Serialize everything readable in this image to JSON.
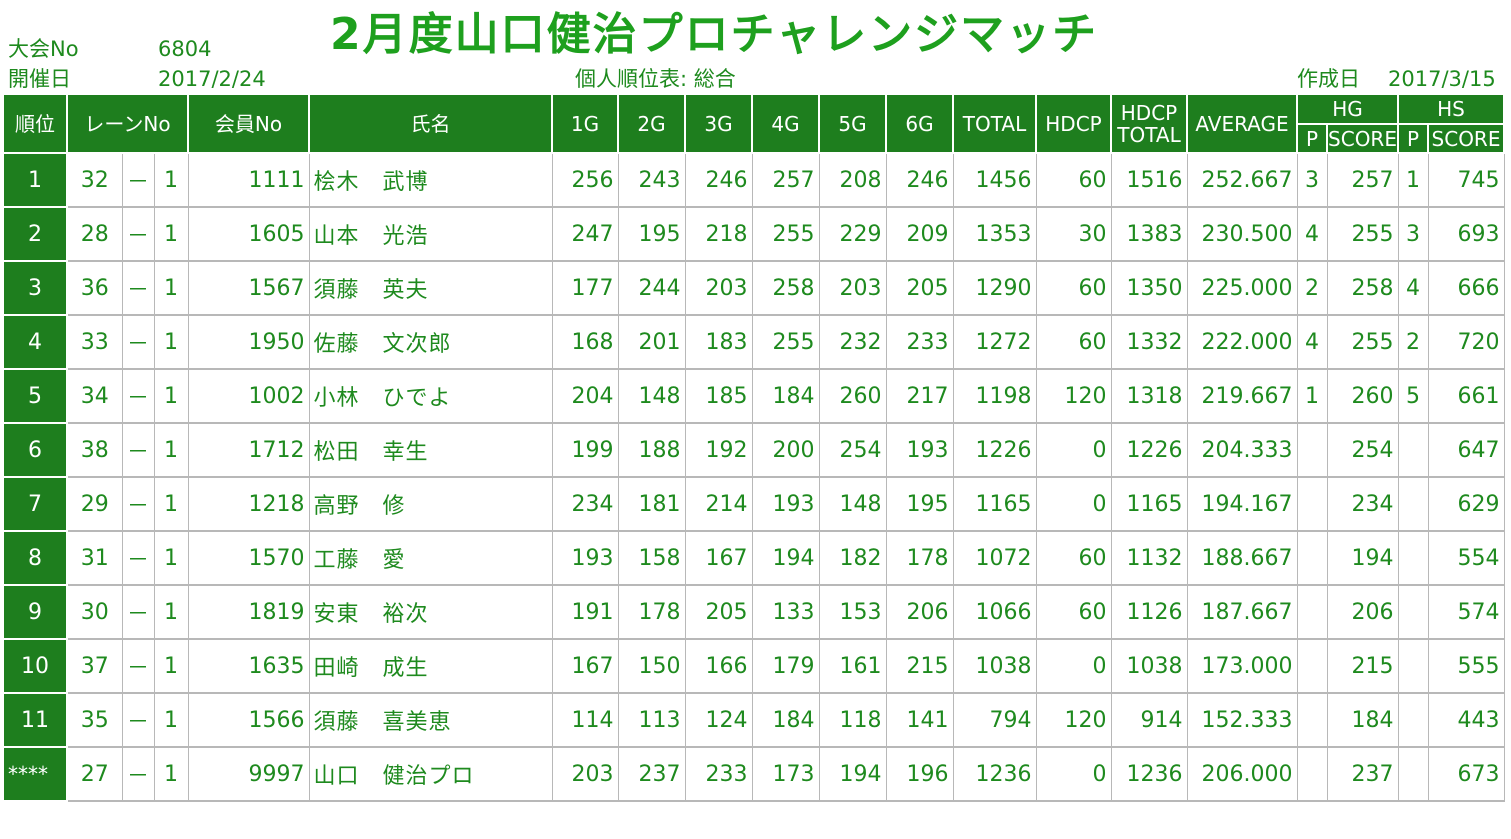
{
  "title": "2月度山口健治プロチャレンジマッチ",
  "meta": {
    "taikai_label": "大会No",
    "taikai_value": "6804",
    "kaisai_label": "開催日",
    "kaisai_value": "2017/2/24",
    "subtitle": "個人順位表: 総合",
    "sakusei_label": "作成日",
    "sakusei_value": "2017/3/15"
  },
  "headers": {
    "rank": "順位",
    "lane": "レーンNo",
    "member": "会員No",
    "name": "氏名",
    "g1": "1G",
    "g2": "2G",
    "g3": "3G",
    "g4": "4G",
    "g5": "5G",
    "g6": "6G",
    "total": "TOTAL",
    "hdcp": "HDCP",
    "hdcp_total_1": "HDCP",
    "hdcp_total_2": "TOTAL",
    "average": "AVERAGE",
    "hg": "HG",
    "hs": "HS",
    "p": "P",
    "score": "SCORE"
  },
  "rows": [
    {
      "rank": "1",
      "lane": "32",
      "dash": "－",
      "lane2": "1",
      "member": "1111",
      "name": "桧木　武博",
      "g": [
        "256",
        "243",
        "246",
        "257",
        "208",
        "246"
      ],
      "total": "1456",
      "hdcp": "60",
      "hdcp_total": "1516",
      "average": "252.667",
      "hg_p": "3",
      "hg_score": "257",
      "hs_p": "1",
      "hs_score": "745"
    },
    {
      "rank": "2",
      "lane": "28",
      "dash": "－",
      "lane2": "1",
      "member": "1605",
      "name": "山本　光浩",
      "g": [
        "247",
        "195",
        "218",
        "255",
        "229",
        "209"
      ],
      "total": "1353",
      "hdcp": "30",
      "hdcp_total": "1383",
      "average": "230.500",
      "hg_p": "4",
      "hg_score": "255",
      "hs_p": "3",
      "hs_score": "693"
    },
    {
      "rank": "3",
      "lane": "36",
      "dash": "－",
      "lane2": "1",
      "member": "1567",
      "name": "須藤　英夫",
      "g": [
        "177",
        "244",
        "203",
        "258",
        "203",
        "205"
      ],
      "total": "1290",
      "hdcp": "60",
      "hdcp_total": "1350",
      "average": "225.000",
      "hg_p": "2",
      "hg_score": "258",
      "hs_p": "4",
      "hs_score": "666"
    },
    {
      "rank": "4",
      "lane": "33",
      "dash": "－",
      "lane2": "1",
      "member": "1950",
      "name": "佐藤　文次郎",
      "g": [
        "168",
        "201",
        "183",
        "255",
        "232",
        "233"
      ],
      "total": "1272",
      "hdcp": "60",
      "hdcp_total": "1332",
      "average": "222.000",
      "hg_p": "4",
      "hg_score": "255",
      "hs_p": "2",
      "hs_score": "720"
    },
    {
      "rank": "5",
      "lane": "34",
      "dash": "－",
      "lane2": "1",
      "member": "1002",
      "name": "小林　ひでよ",
      "g": [
        "204",
        "148",
        "185",
        "184",
        "260",
        "217"
      ],
      "total": "1198",
      "hdcp": "120",
      "hdcp_total": "1318",
      "average": "219.667",
      "hg_p": "1",
      "hg_score": "260",
      "hs_p": "5",
      "hs_score": "661"
    },
    {
      "rank": "6",
      "lane": "38",
      "dash": "－",
      "lane2": "1",
      "member": "1712",
      "name": "松田　幸生",
      "g": [
        "199",
        "188",
        "192",
        "200",
        "254",
        "193"
      ],
      "total": "1226",
      "hdcp": "0",
      "hdcp_total": "1226",
      "average": "204.333",
      "hg_p": "",
      "hg_score": "254",
      "hs_p": "",
      "hs_score": "647"
    },
    {
      "rank": "7",
      "lane": "29",
      "dash": "－",
      "lane2": "1",
      "member": "1218",
      "name": "高野　修",
      "g": [
        "234",
        "181",
        "214",
        "193",
        "148",
        "195"
      ],
      "total": "1165",
      "hdcp": "0",
      "hdcp_total": "1165",
      "average": "194.167",
      "hg_p": "",
      "hg_score": "234",
      "hs_p": "",
      "hs_score": "629"
    },
    {
      "rank": "8",
      "lane": "31",
      "dash": "－",
      "lane2": "1",
      "member": "1570",
      "name": "工藤　愛",
      "g": [
        "193",
        "158",
        "167",
        "194",
        "182",
        "178"
      ],
      "total": "1072",
      "hdcp": "60",
      "hdcp_total": "1132",
      "average": "188.667",
      "hg_p": "",
      "hg_score": "194",
      "hs_p": "",
      "hs_score": "554"
    },
    {
      "rank": "9",
      "lane": "30",
      "dash": "－",
      "lane2": "1",
      "member": "1819",
      "name": "安東　裕次",
      "g": [
        "191",
        "178",
        "205",
        "133",
        "153",
        "206"
      ],
      "total": "1066",
      "hdcp": "60",
      "hdcp_total": "1126",
      "average": "187.667",
      "hg_p": "",
      "hg_score": "206",
      "hs_p": "",
      "hs_score": "574"
    },
    {
      "rank": "10",
      "lane": "37",
      "dash": "－",
      "lane2": "1",
      "member": "1635",
      "name": "田崎　成生",
      "g": [
        "167",
        "150",
        "166",
        "179",
        "161",
        "215"
      ],
      "total": "1038",
      "hdcp": "0",
      "hdcp_total": "1038",
      "average": "173.000",
      "hg_p": "",
      "hg_score": "215",
      "hs_p": "",
      "hs_score": "555"
    },
    {
      "rank": "11",
      "lane": "35",
      "dash": "－",
      "lane2": "1",
      "member": "1566",
      "name": "須藤　喜美恵",
      "g": [
        "114",
        "113",
        "124",
        "184",
        "118",
        "141"
      ],
      "total": "794",
      "hdcp": "120",
      "hdcp_total": "914",
      "average": "152.333",
      "hg_p": "",
      "hg_score": "184",
      "hs_p": "",
      "hs_score": "443"
    },
    {
      "rank": "****",
      "lane": "27",
      "dash": "－",
      "lane2": "1",
      "member": "9997",
      "name": "山口　健治プロ",
      "g": [
        "203",
        "237",
        "233",
        "173",
        "194",
        "196"
      ],
      "total": "1236",
      "hdcp": "0",
      "hdcp_total": "1236",
      "average": "206.000",
      "hg_p": "",
      "hg_score": "237",
      "hs_p": "",
      "hs_score": "673"
    }
  ]
}
